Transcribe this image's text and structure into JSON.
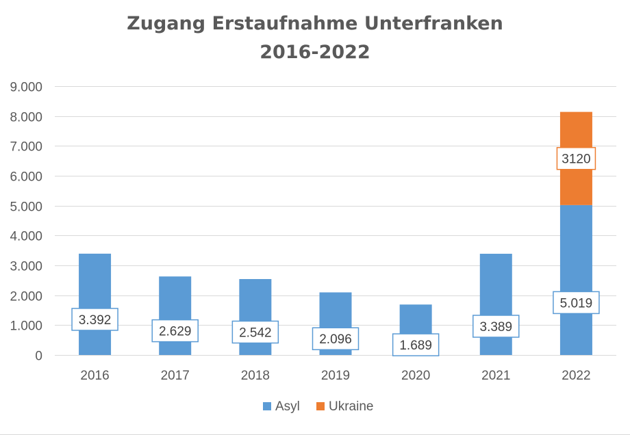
{
  "chart_data": {
    "type": "bar",
    "stacked": true,
    "title": "Zugang Erstaufnahme Unterfranken",
    "subtitle": "2016-2022",
    "categories": [
      "2016",
      "2017",
      "2018",
      "2019",
      "2020",
      "2021",
      "2022"
    ],
    "series": [
      {
        "name": "Asyl",
        "color": "#5B9BD5",
        "values": [
          3392,
          2629,
          2542,
          2096,
          1689,
          3389,
          5019
        ],
        "labels": [
          "3.392",
          "2.629",
          "2.542",
          "2.096",
          "1.689",
          "3.389",
          "5.019"
        ]
      },
      {
        "name": "Ukraine",
        "color": "#ED7D31",
        "values": [
          null,
          null,
          null,
          null,
          null,
          null,
          3120
        ],
        "labels": [
          "",
          "",
          "",
          "",
          "",
          "",
          "3120"
        ]
      }
    ],
    "ylim": [
      0,
      9000
    ],
    "yticks": [
      0,
      1000,
      2000,
      3000,
      4000,
      5000,
      6000,
      7000,
      8000,
      9000
    ],
    "ytick_labels": [
      "0",
      "1.000",
      "2.000",
      "3.000",
      "4.000",
      "5.000",
      "6.000",
      "7.000",
      "8.000",
      "9.000"
    ],
    "xlabel": "",
    "ylabel": "",
    "grid": true,
    "legend": "bottom"
  }
}
